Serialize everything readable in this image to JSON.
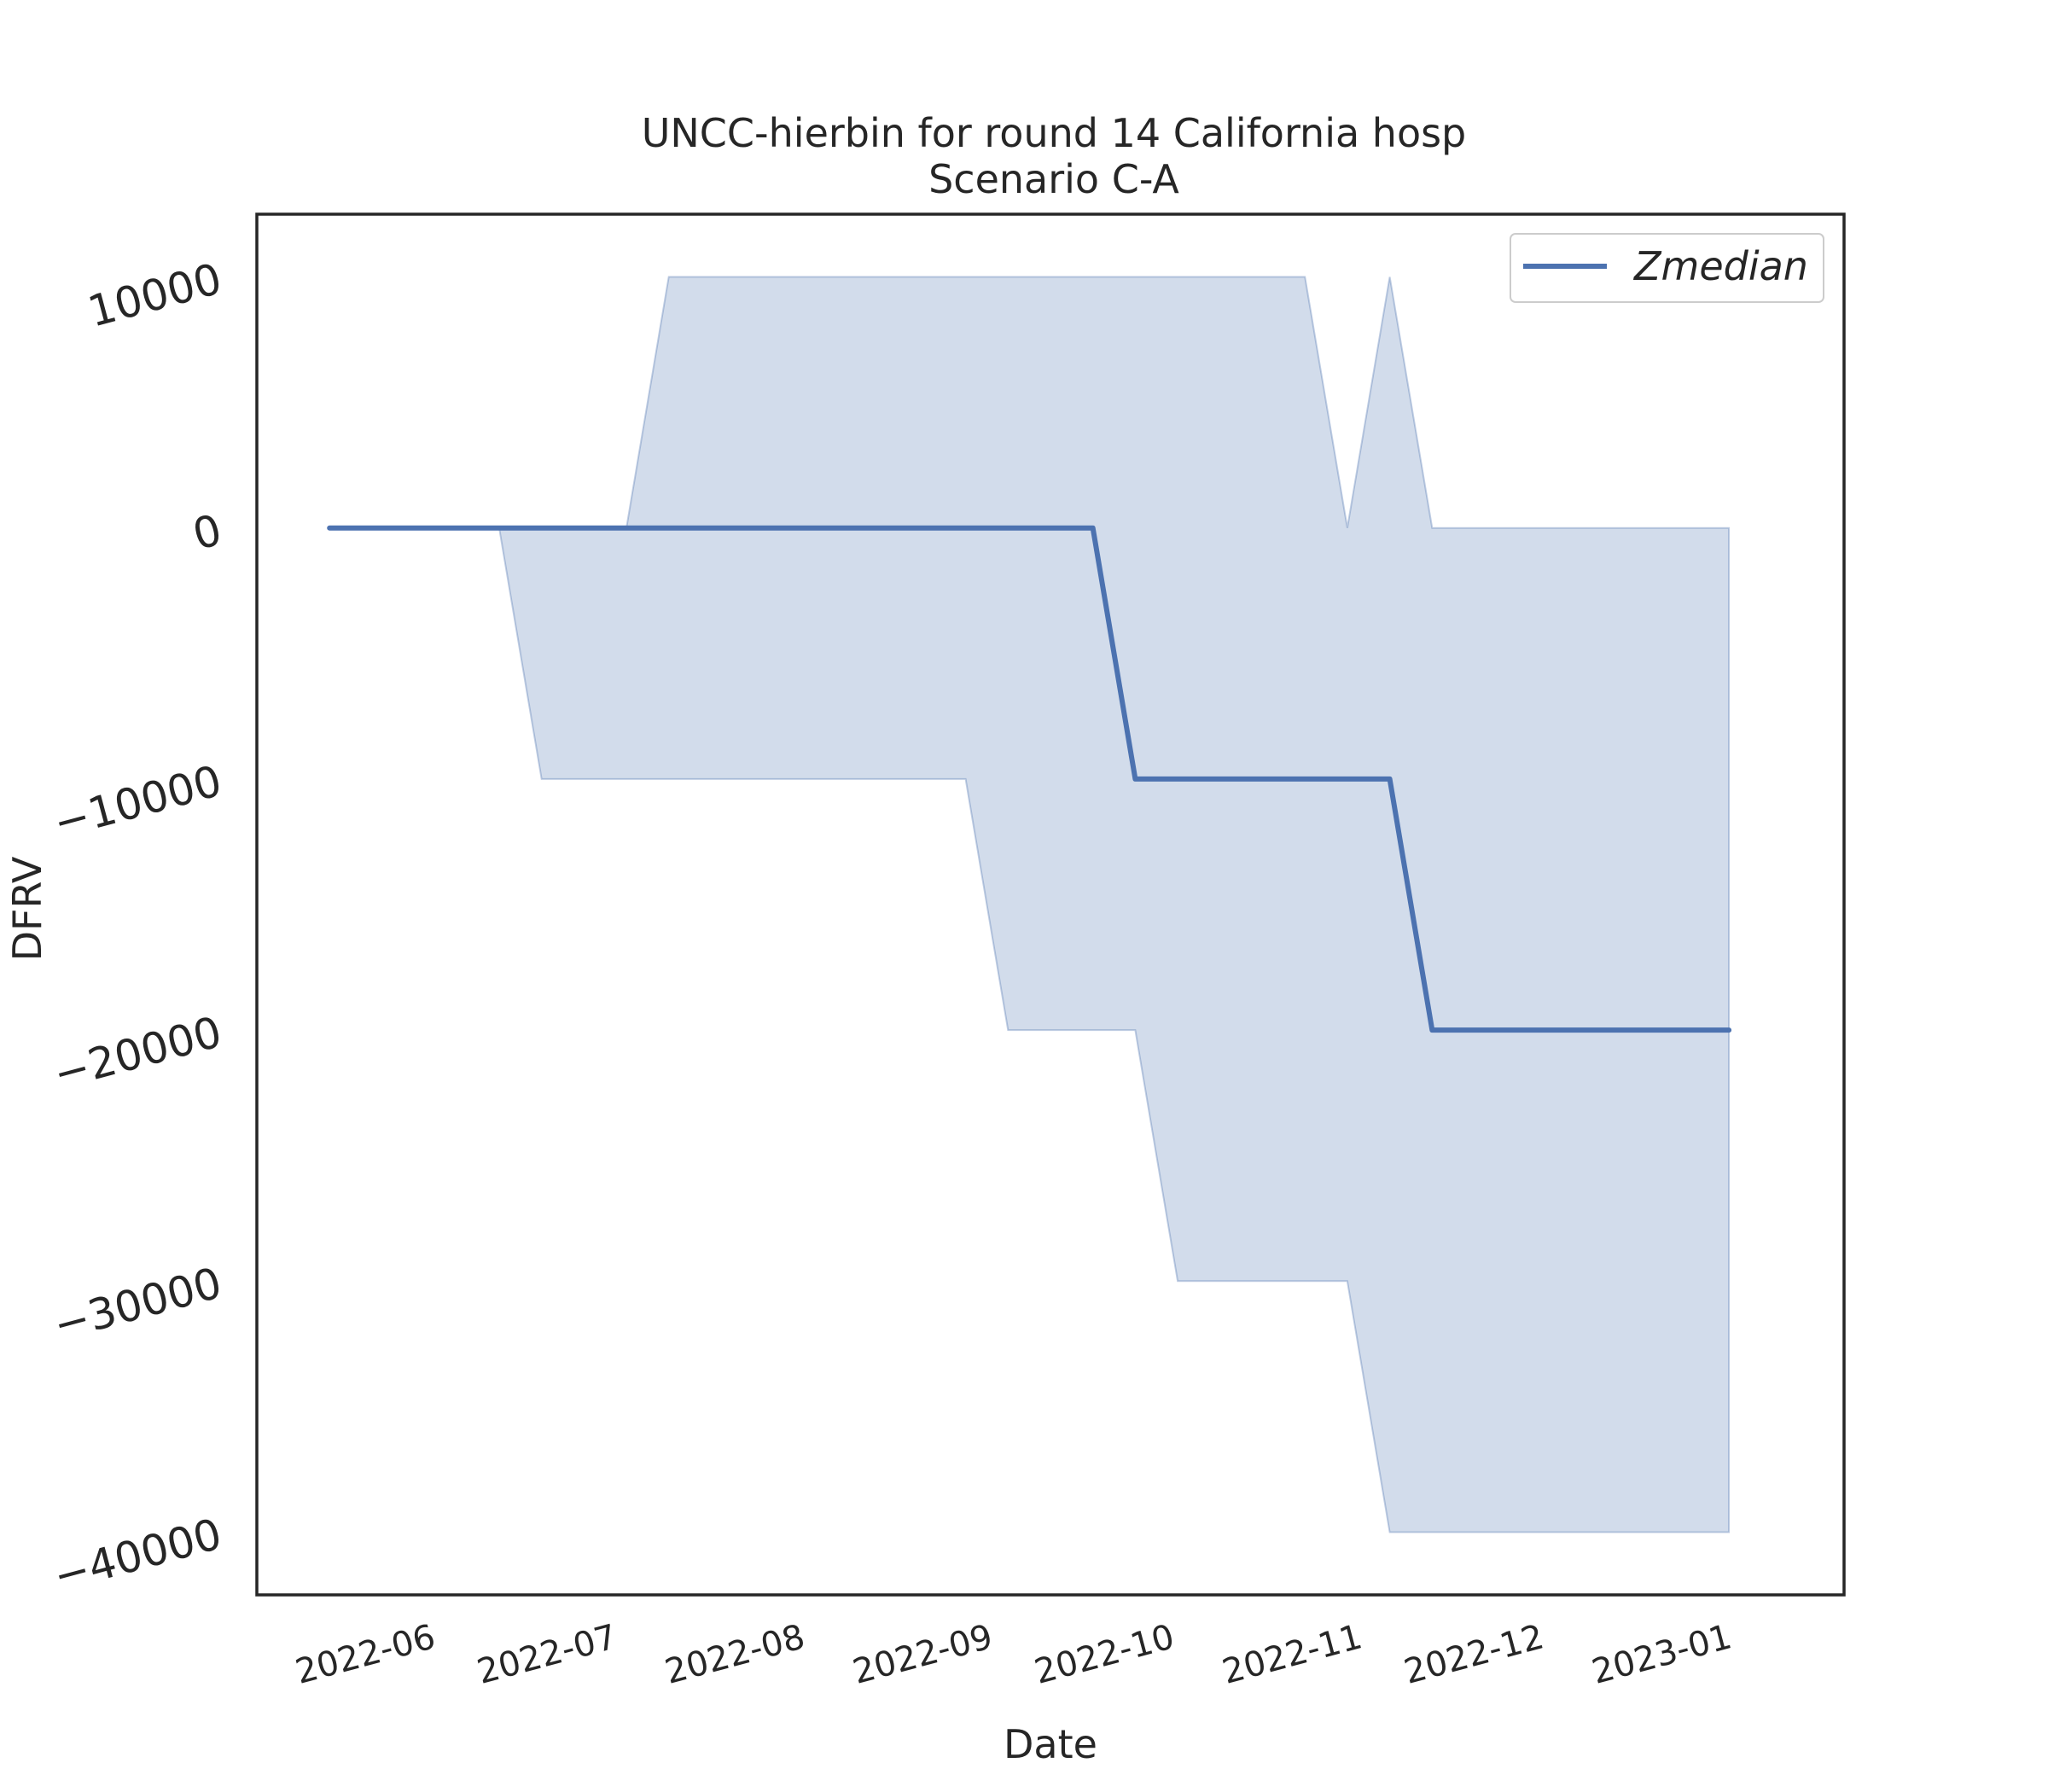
{
  "chart_data": {
    "type": "line",
    "title": "UNCC-hierbin for round 14 California hosp",
    "subtitle": "Scenario C-A",
    "xlabel": "Date",
    "ylabel": "DFRV",
    "ylim": [
      -42500,
      12500
    ],
    "xlim": [
      "2022-05-09",
      "2023-01-26"
    ],
    "grid": false,
    "legend_position": "top-right",
    "x_ticks": [
      "2022-06-01",
      "2022-07-01",
      "2022-08-01",
      "2022-09-01",
      "2022-10-01",
      "2022-11-01",
      "2022-12-01",
      "2023-01-01"
    ],
    "x_tick_labels": [
      "2022-06",
      "2022-07",
      "2022-08",
      "2022-09",
      "2022-10",
      "2022-11",
      "2022-12",
      "2023-01"
    ],
    "y_ticks": [
      10000,
      0,
      -10000,
      -20000,
      -30000,
      -40000
    ],
    "y_tick_labels": [
      "10000",
      "0",
      "−10000",
      "−20000",
      "−30000",
      "−40000"
    ],
    "series": [
      {
        "name": "Zmedian",
        "color": "#4c72b0",
        "x": [
          "2022-05-21",
          "2022-06-18",
          "2022-06-25",
          "2022-07-09",
          "2022-07-16",
          "2022-09-03",
          "2022-09-10",
          "2022-09-24",
          "2022-10-01",
          "2022-10-22",
          "2022-10-29",
          "2022-11-05",
          "2022-11-12",
          "2022-11-19",
          "2023-01-07"
        ],
        "y": [
          0,
          0,
          0,
          0,
          0,
          0,
          0,
          0,
          -10000,
          -10000,
          -10000,
          -10000,
          -10000,
          -20000,
          -20000
        ]
      }
    ],
    "band": {
      "color": "#4c72b0",
      "opacity": 0.25,
      "x": [
        "2022-05-21",
        "2022-06-18",
        "2022-06-25",
        "2022-07-09",
        "2022-07-16",
        "2022-09-03",
        "2022-09-10",
        "2022-09-24",
        "2022-10-01",
        "2022-10-08",
        "2022-10-22",
        "2022-10-29",
        "2022-11-05",
        "2022-11-12",
        "2022-11-19",
        "2023-01-07"
      ],
      "lower": [
        0,
        0,
        -10000,
        -10000,
        -10000,
        -10000,
        -20000,
        -20000,
        -20000,
        -30000,
        -30000,
        -30000,
        -30000,
        -40000,
        -40000,
        -40000
      ],
      "upper": [
        0,
        0,
        0,
        0,
        10000,
        10000,
        10000,
        10000,
        10000,
        10000,
        10000,
        10000,
        0,
        10000,
        0,
        0
      ]
    }
  }
}
